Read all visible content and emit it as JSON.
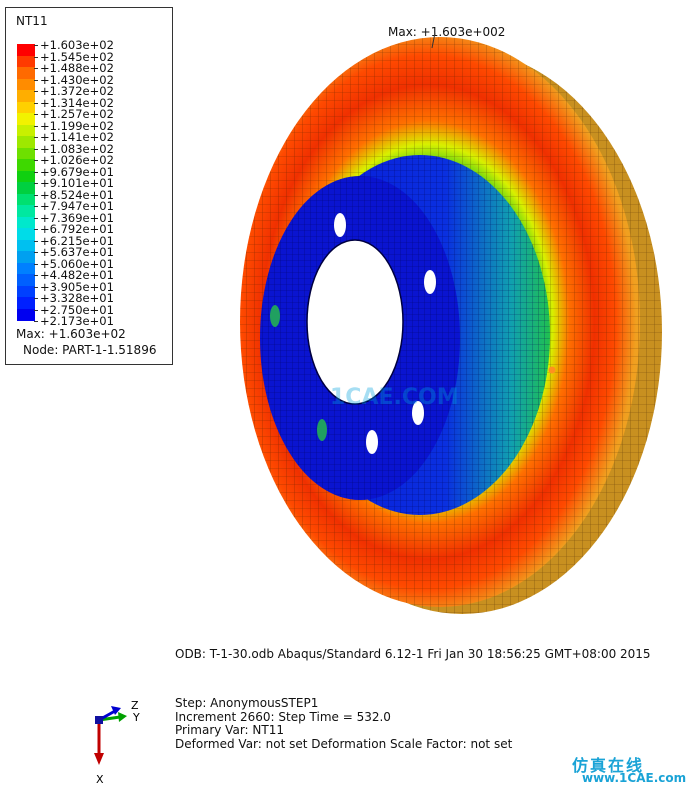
{
  "legend": {
    "title": "NT11",
    "labels": [
      "+1.603e+02",
      "+1.545e+02",
      "+1.488e+02",
      "+1.430e+02",
      "+1.372e+02",
      "+1.314e+02",
      "+1.257e+02",
      "+1.199e+02",
      "+1.141e+02",
      "+1.083e+02",
      "+1.026e+02",
      "+9.679e+01",
      "+9.101e+01",
      "+8.524e+01",
      "+7.947e+01",
      "+7.369e+01",
      "+6.792e+01",
      "+6.215e+01",
      "+5.637e+01",
      "+5.060e+01",
      "+4.482e+01",
      "+3.905e+01",
      "+3.328e+01",
      "+2.750e+01",
      "+2.173e+01"
    ],
    "colors": [
      "#ff0000",
      "#ff3a00",
      "#ff6a00",
      "#ff8c00",
      "#ffae00",
      "#ffd000",
      "#f2f200",
      "#c8f000",
      "#9ee800",
      "#6ee000",
      "#3ed800",
      "#10d010",
      "#00d040",
      "#00e070",
      "#00e8a0",
      "#00e8cc",
      "#00dce8",
      "#00c0f0",
      "#00a0f0",
      "#0080ff",
      "#0060ff",
      "#0040ff",
      "#0020ff",
      "#0000f0"
    ],
    "max_text": "Max: +1.603e+02",
    "node_text": "Node: PART-1-1.51896"
  },
  "viewport": {
    "max_annotation": "Max: +1.603e+002",
    "center_watermark": "1CAE.COM"
  },
  "footer": {
    "odb_line": "ODB: T-1-30.odb    Abaqus/Standard 6.12-1    Fri Jan 30 18:56:25 GMT+08:00 2015",
    "step": "Step: AnonymousSTEP1",
    "increment": "Increment   2660: Step Time =     532.0",
    "primary_var": "Primary Var: NT11",
    "deformed_var": "Deformed Var: not set   Deformation Scale Factor: not set"
  },
  "triad": {
    "z": "Z",
    "y": "Y",
    "x": "X"
  },
  "watermark": {
    "text": "仿真在线",
    "url": "www.1CAE.com"
  }
}
